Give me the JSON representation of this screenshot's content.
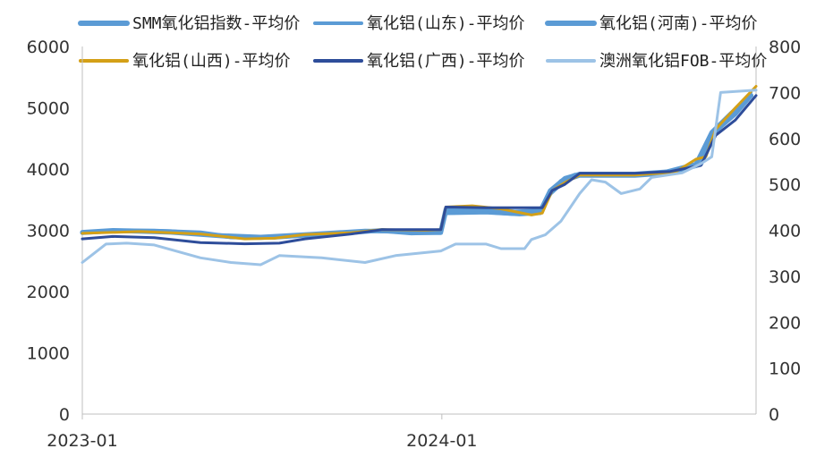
{
  "chart_data": {
    "type": "line",
    "title": "",
    "xlabel": "",
    "ylabel": "",
    "y2label": "",
    "x_ticks": [
      "2023-01",
      "2024-01"
    ],
    "x_domain": [
      "2023-01-01",
      "2024-11-15"
    ],
    "ylim": [
      0,
      6000
    ],
    "y_ticks": [
      0,
      1000,
      2000,
      3000,
      4000,
      5000,
      6000
    ],
    "y2lim": [
      0,
      800
    ],
    "y2_ticks": [
      0,
      100,
      200,
      300,
      400,
      500,
      600,
      700,
      800
    ],
    "legend_position": "top",
    "grid": false,
    "series": [
      {
        "name": "SMM氧化铝指数-平均价",
        "axis": "left",
        "color": "#5b9bd5",
        "width": 5,
        "points": [
          [
            "2023-01-01",
            2960
          ],
          [
            "2023-02-01",
            2990
          ],
          [
            "2023-03-15",
            2990
          ],
          [
            "2023-05-01",
            2960
          ],
          [
            "2023-06-01",
            2890
          ],
          [
            "2023-07-01",
            2880
          ],
          [
            "2023-08-15",
            2920
          ],
          [
            "2023-10-01",
            2960
          ],
          [
            "2023-11-01",
            3000
          ],
          [
            "2023-12-01",
            2960
          ],
          [
            "2023-12-31",
            2960
          ],
          [
            "2024-01-05",
            3300
          ],
          [
            "2024-02-15",
            3300
          ],
          [
            "2024-03-15",
            3270
          ],
          [
            "2024-04-10",
            3290
          ],
          [
            "2024-04-20",
            3600
          ],
          [
            "2024-05-01",
            3800
          ],
          [
            "2024-05-15",
            3900
          ],
          [
            "2024-06-15",
            3900
          ],
          [
            "2024-07-15",
            3900
          ],
          [
            "2024-08-15",
            3950
          ],
          [
            "2024-09-15",
            4080
          ],
          [
            "2024-10-01",
            4600
          ],
          [
            "2024-10-20",
            4900
          ],
          [
            "2024-11-10",
            5200
          ]
        ]
      },
      {
        "name": "氧化铝(山东)-平均价",
        "axis": "left",
        "color": "#5b9bd5",
        "width": 3,
        "points": [
          [
            "2023-01-01",
            2950
          ],
          [
            "2023-02-01",
            2980
          ],
          [
            "2023-04-01",
            2950
          ],
          [
            "2023-06-01",
            2880
          ],
          [
            "2023-07-15",
            2870
          ],
          [
            "2023-09-01",
            2920
          ],
          [
            "2023-10-15",
            3000
          ],
          [
            "2023-12-01",
            2940
          ],
          [
            "2023-12-31",
            2950
          ],
          [
            "2024-01-05",
            3270
          ],
          [
            "2024-02-15",
            3280
          ],
          [
            "2024-03-20",
            3250
          ],
          [
            "2024-04-10",
            3270
          ],
          [
            "2024-04-20",
            3580
          ],
          [
            "2024-05-05",
            3800
          ],
          [
            "2024-05-20",
            3880
          ],
          [
            "2024-07-15",
            3880
          ],
          [
            "2024-08-20",
            3920
          ],
          [
            "2024-09-20",
            4060
          ],
          [
            "2024-10-05",
            4650
          ],
          [
            "2024-10-25",
            4950
          ],
          [
            "2024-11-10",
            5250
          ]
        ]
      },
      {
        "name": "氧化铝(河南)-平均价",
        "axis": "left",
        "color": "#5b9bd5",
        "width": 5,
        "points": [
          [
            "2023-01-01",
            2970
          ],
          [
            "2023-02-01",
            3000
          ],
          [
            "2023-04-01",
            2980
          ],
          [
            "2023-05-15",
            2920
          ],
          [
            "2023-07-01",
            2890
          ],
          [
            "2023-08-15",
            2930
          ],
          [
            "2023-10-15",
            2990
          ],
          [
            "2023-12-01",
            2980
          ],
          [
            "2023-12-31",
            2990
          ],
          [
            "2024-01-05",
            3340
          ],
          [
            "2024-02-15",
            3350
          ],
          [
            "2024-03-15",
            3300
          ],
          [
            "2024-04-10",
            3320
          ],
          [
            "2024-04-20",
            3650
          ],
          [
            "2024-05-05",
            3850
          ],
          [
            "2024-05-20",
            3920
          ],
          [
            "2024-07-15",
            3920
          ],
          [
            "2024-08-20",
            3960
          ],
          [
            "2024-09-20",
            4080
          ],
          [
            "2024-10-05",
            4620
          ],
          [
            "2024-10-25",
            4900
          ],
          [
            "2024-11-10",
            5200
          ]
        ]
      },
      {
        "name": "氧化铝(山西)-平均价",
        "axis": "left",
        "color": "#d4a017",
        "width": 3,
        "points": [
          [
            "2023-01-01",
            2950
          ],
          [
            "2023-03-01",
            2980
          ],
          [
            "2023-05-01",
            2940
          ],
          [
            "2023-06-15",
            2860
          ],
          [
            "2023-07-15",
            2870
          ],
          [
            "2023-08-15",
            2930
          ],
          [
            "2023-10-01",
            2960
          ],
          [
            "2023-11-01",
            3010
          ],
          [
            "2023-12-15",
            3000
          ],
          [
            "2023-12-31",
            3010
          ],
          [
            "2024-01-05",
            3380
          ],
          [
            "2024-02-01",
            3400
          ],
          [
            "2024-03-01",
            3350
          ],
          [
            "2024-04-01",
            3250
          ],
          [
            "2024-04-12",
            3280
          ],
          [
            "2024-04-22",
            3650
          ],
          [
            "2024-05-05",
            3780
          ],
          [
            "2024-05-20",
            3900
          ],
          [
            "2024-07-15",
            3900
          ],
          [
            "2024-08-25",
            3950
          ],
          [
            "2024-09-15",
            4160
          ],
          [
            "2024-09-25",
            4200
          ],
          [
            "2024-10-05",
            4650
          ],
          [
            "2024-10-25",
            5000
          ],
          [
            "2024-11-15",
            5350
          ]
        ]
      },
      {
        "name": "氧化铝(广西)-平均价",
        "axis": "left",
        "color": "#2e4d9a",
        "width": 3,
        "points": [
          [
            "2023-01-01",
            2860
          ],
          [
            "2023-02-01",
            2900
          ],
          [
            "2023-03-15",
            2880
          ],
          [
            "2023-05-01",
            2800
          ],
          [
            "2023-06-15",
            2780
          ],
          [
            "2023-07-20",
            2790
          ],
          [
            "2023-08-15",
            2860
          ],
          [
            "2023-10-01",
            2940
          ],
          [
            "2023-11-01",
            3010
          ],
          [
            "2023-12-31",
            3010
          ],
          [
            "2024-01-05",
            3380
          ],
          [
            "2024-02-15",
            3370
          ],
          [
            "2024-04-12",
            3370
          ],
          [
            "2024-04-22",
            3650
          ],
          [
            "2024-05-05",
            3750
          ],
          [
            "2024-05-20",
            3930
          ],
          [
            "2024-07-15",
            3930
          ],
          [
            "2024-08-20",
            3960
          ],
          [
            "2024-09-20",
            4060
          ],
          [
            "2024-10-05",
            4550
          ],
          [
            "2024-10-25",
            4800
          ],
          [
            "2024-11-15",
            5200
          ]
        ]
      },
      {
        "name": "澳洲氧化铝FOB-平均价",
        "axis": "right",
        "color": "#9dc3e6",
        "width": 3,
        "points": [
          [
            "2023-01-01",
            330
          ],
          [
            "2023-01-10",
            345
          ],
          [
            "2023-01-25",
            370
          ],
          [
            "2023-02-15",
            372
          ],
          [
            "2023-03-15",
            368
          ],
          [
            "2023-05-01",
            340
          ],
          [
            "2023-06-01",
            330
          ],
          [
            "2023-07-01",
            325
          ],
          [
            "2023-07-20",
            345
          ],
          [
            "2023-09-01",
            340
          ],
          [
            "2023-10-15",
            330
          ],
          [
            "2023-11-15",
            345
          ],
          [
            "2023-12-31",
            355
          ],
          [
            "2024-01-15",
            370
          ],
          [
            "2024-02-15",
            370
          ],
          [
            "2024-03-01",
            360
          ],
          [
            "2024-03-25",
            360
          ],
          [
            "2024-04-01",
            380
          ],
          [
            "2024-04-15",
            390
          ],
          [
            "2024-05-01",
            420
          ],
          [
            "2024-05-20",
            480
          ],
          [
            "2024-06-01",
            510
          ],
          [
            "2024-06-15",
            505
          ],
          [
            "2024-07-01",
            480
          ],
          [
            "2024-07-20",
            490
          ],
          [
            "2024-08-01",
            515
          ],
          [
            "2024-09-01",
            525
          ],
          [
            "2024-09-20",
            545
          ],
          [
            "2024-10-01",
            560
          ],
          [
            "2024-10-10",
            700
          ],
          [
            "2024-11-15",
            705
          ]
        ]
      }
    ]
  }
}
